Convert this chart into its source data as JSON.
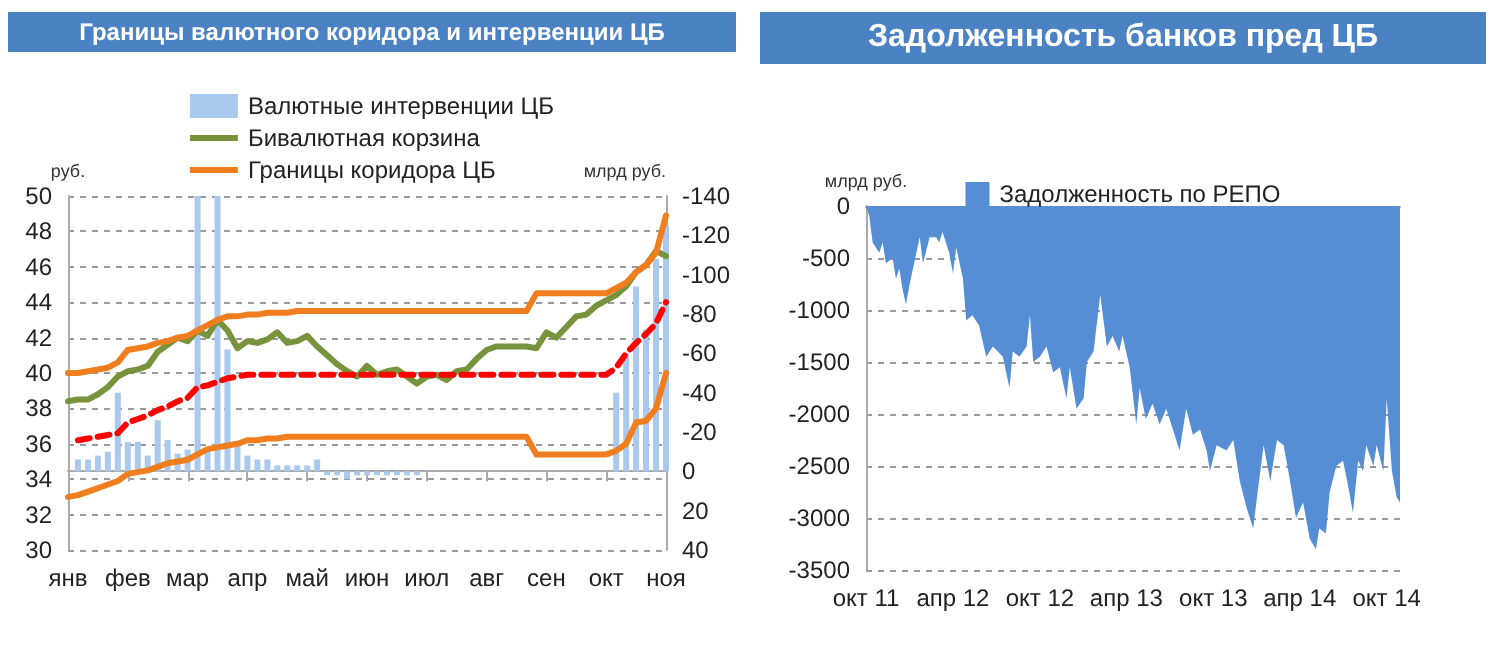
{
  "chart_data": [
    {
      "type": "line",
      "title": "Границы валютного коридора и интервенции ЦБ",
      "ylabel": "руб.",
      "y2label": "млрд руб.",
      "legend": "top",
      "grid": "y",
      "marker": "none",
      "categories": [
        "янв",
        null,
        null,
        null,
        null,
        null,
        "фев",
        null,
        null,
        null,
        null,
        null,
        "мар",
        null,
        null,
        null,
        null,
        null,
        "апр",
        null,
        null,
        null,
        null,
        null,
        "май",
        null,
        null,
        null,
        null,
        null,
        "июн",
        null,
        null,
        null,
        null,
        null,
        "июл",
        null,
        null,
        null,
        null,
        null,
        "авг",
        null,
        null,
        null,
        null,
        null,
        "сен",
        null,
        null,
        null,
        null,
        null,
        "окт",
        null,
        null,
        null,
        null,
        null,
        "ноя"
      ],
      "ylim": [
        30,
        50
      ],
      "yticks": [
        30,
        32,
        34,
        36,
        38,
        40,
        42,
        44,
        46,
        48,
        50
      ],
      "y2lim": [
        40,
        -140
      ],
      "y2ticks": [
        40,
        20,
        0,
        -20,
        -40,
        -60,
        -80,
        -100,
        -120,
        -140
      ],
      "series": [
        {
          "name": "Валютные интервенции ЦБ",
          "type": "bar",
          "axis": "y2",
          "color": "#a9c9ee",
          "values": [
            null,
            -6,
            -6,
            -8,
            -10,
            -40,
            -15,
            -15,
            -8,
            -26,
            -16,
            -9,
            -11,
            -140,
            -11,
            -140,
            -62,
            -15,
            -8,
            -6,
            -6,
            -3,
            -3,
            -3,
            -3,
            -6,
            2,
            2,
            4,
            2,
            2,
            2,
            2,
            2,
            2,
            2,
            null,
            null,
            null,
            null,
            null,
            null,
            null,
            null,
            null,
            null,
            null,
            null,
            null,
            null,
            null,
            null,
            null,
            null,
            null,
            -40,
            -60,
            -94,
            -72,
            -108,
            -125
          ]
        },
        {
          "name": "Бивалютная корзина",
          "color": "#77933c",
          "values": [
            38.4,
            38.5,
            38.5,
            38.8,
            39.2,
            39.8,
            40.1,
            40.2,
            40.4,
            41.2,
            41.6,
            42.0,
            41.8,
            42.4,
            42.1,
            43.0,
            42.4,
            41.4,
            41.8,
            41.7,
            41.9,
            42.3,
            41.7,
            41.8,
            42.1,
            41.5,
            41.0,
            40.5,
            40.1,
            39.8,
            40.4,
            39.9,
            40.1,
            40.2,
            39.8,
            39.4,
            39.8,
            39.9,
            39.6,
            40.1,
            40.2,
            40.8,
            41.3,
            41.5,
            41.5,
            41.5,
            41.5,
            41.4,
            42.3,
            42.0,
            42.6,
            43.2,
            43.3,
            43.8,
            44.1,
            44.4,
            44.9,
            45.7,
            46.1,
            46.9,
            46.6
          ]
        },
        {
          "name": "Границы коридора ЦБ",
          "color": "#f07e1e",
          "values": [
            40.0,
            40.0,
            40.1,
            40.2,
            40.3,
            40.6,
            41.3,
            41.4,
            41.5,
            41.7,
            41.8,
            42.0,
            42.1,
            42.4,
            42.7,
            43.0,
            43.2,
            43.2,
            43.3,
            43.3,
            43.4,
            43.4,
            43.4,
            43.5,
            43.5,
            43.5,
            43.5,
            43.5,
            43.5,
            43.5,
            43.5,
            43.5,
            43.5,
            43.5,
            43.5,
            43.5,
            43.5,
            43.5,
            43.5,
            43.5,
            43.5,
            43.5,
            43.5,
            43.5,
            43.5,
            43.5,
            43.5,
            44.5,
            44.5,
            44.5,
            44.5,
            44.5,
            44.5,
            44.5,
            44.5,
            44.8,
            45.1,
            45.7,
            46.1,
            46.8,
            48.9
          ]
        },
        {
          "color": "#f07e1e",
          "values": [
            33.0,
            33.1,
            33.3,
            33.5,
            33.7,
            33.9,
            34.3,
            34.4,
            34.5,
            34.7,
            34.9,
            35.0,
            35.1,
            35.4,
            35.7,
            35.8,
            35.9,
            36.0,
            36.2,
            36.2,
            36.3,
            36.3,
            36.4,
            36.4,
            36.4,
            36.4,
            36.4,
            36.4,
            36.4,
            36.4,
            36.4,
            36.4,
            36.4,
            36.4,
            36.4,
            36.4,
            36.4,
            36.4,
            36.4,
            36.4,
            36.4,
            36.4,
            36.4,
            36.4,
            36.4,
            36.4,
            36.4,
            35.4,
            35.4,
            35.4,
            35.4,
            35.4,
            35.4,
            35.4,
            35.4,
            35.6,
            36.0,
            37.2,
            37.3,
            38.0,
            40.0
          ]
        },
        {
          "color": "#ff0000",
          "line_style": "dashed",
          "values": [
            null,
            36.2,
            36.3,
            36.4,
            36.5,
            36.6,
            37.2,
            37.4,
            37.6,
            37.9,
            38.1,
            38.4,
            38.6,
            39.2,
            39.3,
            39.5,
            39.7,
            39.8,
            39.9,
            39.9,
            39.9,
            39.9,
            39.9,
            39.9,
            39.9,
            39.9,
            39.9,
            39.9,
            39.9,
            39.9,
            39.9,
            39.9,
            39.9,
            39.9,
            39.9,
            39.9,
            39.9,
            39.9,
            39.9,
            39.9,
            39.9,
            39.9,
            39.9,
            39.9,
            39.9,
            39.9,
            39.9,
            39.9,
            39.9,
            39.9,
            39.9,
            39.9,
            39.9,
            39.9,
            39.9,
            40.3,
            41.1,
            41.7,
            42.2,
            42.8,
            44.0
          ]
        }
      ]
    },
    {
      "type": "area",
      "title": "Задолженность банков пред ЦБ",
      "ylabel": "млрд руб.",
      "legend": "top",
      "grid": "y",
      "marker": "none",
      "xlim": [
        "2011-10-01",
        "2014-10-29"
      ],
      "xticks": [
        {
          "value": "2011-10-01",
          "label": "окт 11"
        },
        {
          "value": "2012-04-01",
          "label": "апр 12"
        },
        {
          "value": "2012-10-01",
          "label": "окт 12"
        },
        {
          "value": "2013-04-01",
          "label": "апр 13"
        },
        {
          "value": "2013-10-01",
          "label": "окт 13"
        },
        {
          "value": "2014-04-01",
          "label": "апр 14"
        },
        {
          "value": "2014-10-01",
          "label": "окт 14"
        }
      ],
      "ylim": [
        -3500,
        0
      ],
      "yticks": [
        -3500,
        -3000,
        -2500,
        -2000,
        -1500,
        -1000,
        -500,
        0
      ],
      "series": [
        {
          "name": "Задолженность по РЕПО",
          "color": "#558ed5",
          "x": [
            "2011-10-01",
            "2011-10-08",
            "2011-10-15",
            "2011-10-29",
            "2011-11-05",
            "2011-11-12",
            "2011-11-26",
            "2011-12-03",
            "2011-12-10",
            "2011-12-17",
            "2011-12-24",
            "2012-01-01",
            "2012-01-15",
            "2012-01-22",
            "2012-01-29",
            "2012-02-12",
            "2012-02-26",
            "2012-03-03",
            "2012-03-10",
            "2012-03-24",
            "2012-04-01",
            "2012-04-08",
            "2012-04-22",
            "2012-04-29",
            "2012-05-12",
            "2012-05-26",
            "2012-06-10",
            "2012-06-24",
            "2012-07-15",
            "2012-07-29",
            "2012-08-05",
            "2012-08-19",
            "2012-09-03",
            "2012-09-10",
            "2012-09-17",
            "2012-10-01",
            "2012-10-15",
            "2012-10-29",
            "2012-11-12",
            "2012-11-26",
            "2012-12-03",
            "2012-12-17",
            "2013-01-01",
            "2013-01-08",
            "2013-01-22",
            "2013-02-05",
            "2013-02-19",
            "2013-03-03",
            "2013-03-17",
            "2013-03-24",
            "2013-04-08",
            "2013-04-22",
            "2013-04-29",
            "2013-05-12",
            "2013-05-26",
            "2013-06-10",
            "2013-06-24",
            "2013-07-08",
            "2013-07-22",
            "2013-08-05",
            "2013-08-19",
            "2013-09-03",
            "2013-09-17",
            "2013-09-24",
            "2013-10-08",
            "2013-10-29",
            "2013-11-12",
            "2013-11-26",
            "2013-12-10",
            "2013-12-24",
            "2014-01-01",
            "2014-01-15",
            "2014-01-29",
            "2014-02-12",
            "2014-02-26",
            "2014-03-10",
            "2014-03-24",
            "2014-04-08",
            "2014-04-22",
            "2014-05-05",
            "2014-05-12",
            "2014-05-26",
            "2014-06-03",
            "2014-06-17",
            "2014-07-01",
            "2014-07-10",
            "2014-07-22",
            "2014-08-02",
            "2014-08-12",
            "2014-08-19",
            "2014-09-03",
            "2014-09-10",
            "2014-09-24",
            "2014-10-01",
            "2014-10-12",
            "2014-10-22",
            "2014-10-29"
          ],
          "values": [
            0,
            -100,
            -350,
            -450,
            -350,
            -550,
            -500,
            -700,
            -600,
            -800,
            -950,
            -750,
            -450,
            -300,
            -550,
            -300,
            -300,
            -350,
            -250,
            -450,
            -650,
            -400,
            -700,
            -1100,
            -1050,
            -1150,
            -1450,
            -1350,
            -1450,
            -1750,
            -1400,
            -1450,
            -1350,
            -1050,
            -1500,
            -1450,
            -1350,
            -1600,
            -1550,
            -1850,
            -1550,
            -1950,
            -1850,
            -1500,
            -1400,
            -850,
            -1350,
            -1250,
            -1400,
            -1250,
            -1550,
            -2100,
            -1750,
            -2050,
            -1900,
            -2100,
            -1950,
            -2150,
            -2350,
            -1950,
            -2200,
            -2150,
            -2350,
            -2550,
            -2300,
            -2350,
            -2250,
            -2650,
            -2900,
            -3100,
            -2800,
            -2300,
            -2650,
            -2250,
            -2300,
            -2600,
            -3000,
            -2850,
            -3200,
            -3300,
            -3100,
            -3150,
            -2750,
            -2500,
            -2450,
            -2650,
            -2950,
            -2450,
            -2550,
            -2300,
            -2500,
            -2300,
            -2550,
            -1850,
            -2550,
            -2800,
            -2850
          ]
        }
      ]
    }
  ]
}
